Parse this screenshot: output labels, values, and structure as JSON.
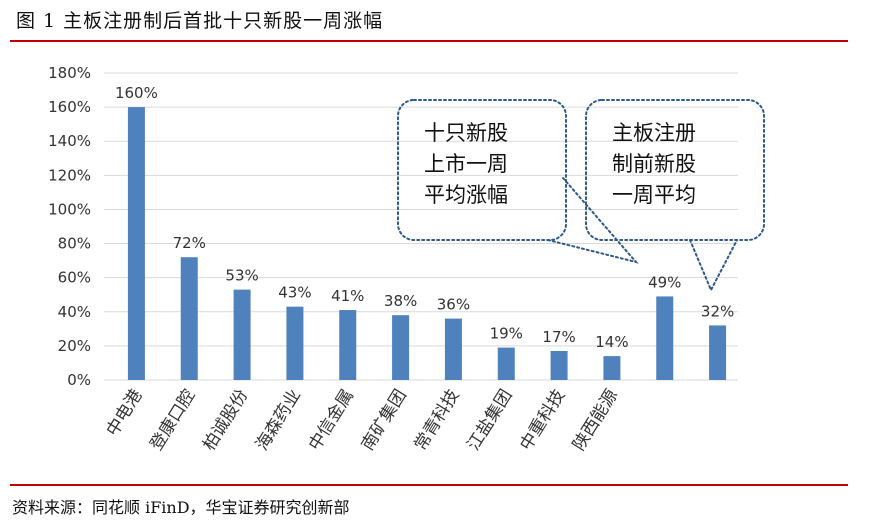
{
  "title": "图 1 主板注册制后首批十只新股一周涨幅",
  "source": "资料来源：同花顺 iFinD，华宝证券研究创新部",
  "colors": {
    "bar": "#4f81bd",
    "rule": "#c00000",
    "callout_border": "#2e5a8a",
    "grid": "#d9d9d9"
  },
  "callouts": {
    "left": [
      "十只新股",
      "上市一周",
      "平均涨幅"
    ],
    "right": [
      "主板注册",
      "制前新股",
      "一周平均"
    ]
  },
  "chart_data": {
    "type": "bar",
    "title": "",
    "xlabel": "",
    "ylabel": "",
    "ylim": [
      0,
      180
    ],
    "yticks": [
      "0%",
      "20%",
      "40%",
      "60%",
      "80%",
      "100%",
      "120%",
      "140%",
      "160%",
      "180%"
    ],
    "grid": true,
    "categories": [
      "中电港",
      "登康口腔",
      "柏诚股份",
      "海森药业",
      "中信金属",
      "南矿集团",
      "常青科技",
      "江盐集团",
      "中重科技",
      "陕西能源",
      "",
      ""
    ],
    "values": [
      160,
      72,
      53,
      43,
      41,
      38,
      36,
      19,
      17,
      14,
      49,
      32
    ],
    "value_labels": [
      "160%",
      "72%",
      "53%",
      "43%",
      "41%",
      "38%",
      "36%",
      "19%",
      "17%",
      "14%",
      "49%",
      "32%"
    ]
  }
}
